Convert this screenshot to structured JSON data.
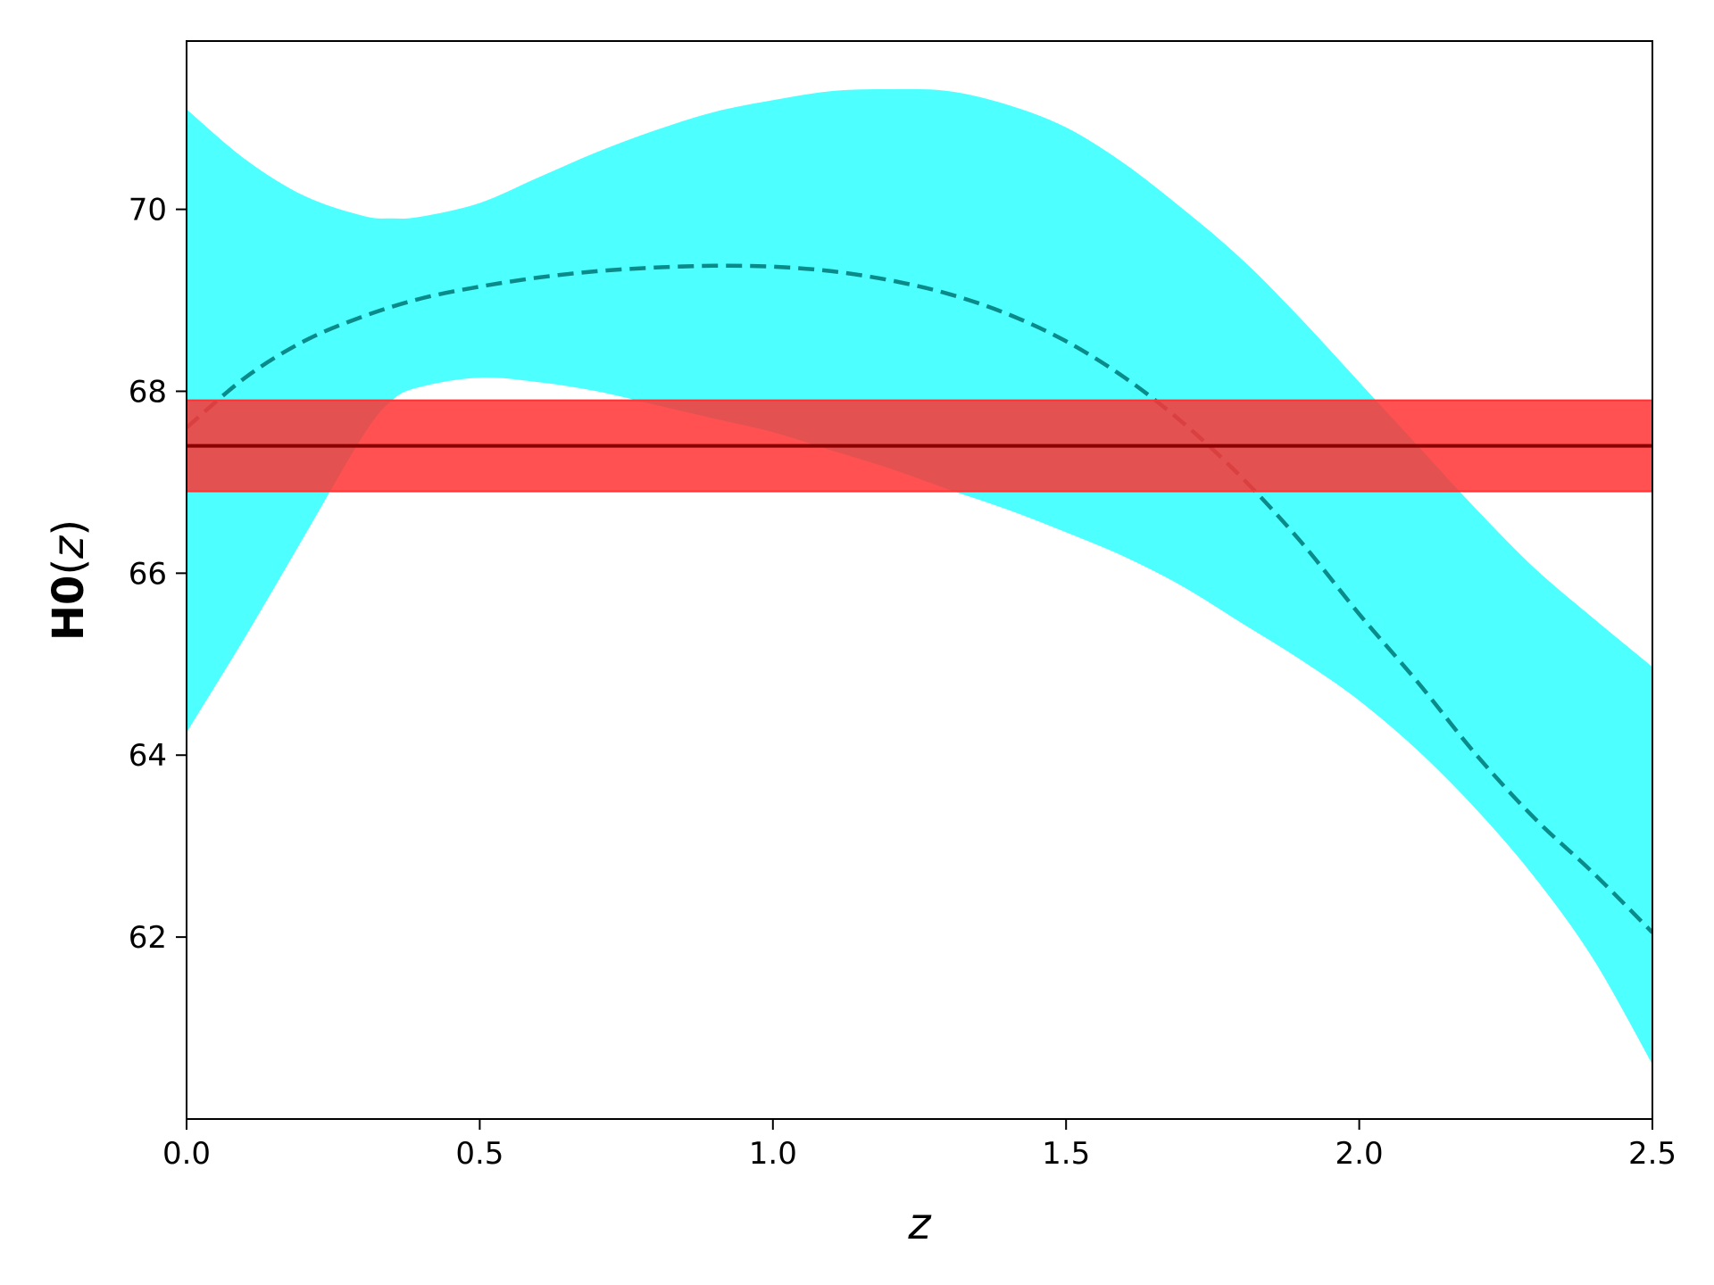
{
  "chart_data": {
    "type": "line",
    "xlabel": {
      "main": "",
      "var": "z",
      "suffix": ""
    },
    "ylabel": {
      "main": "H0",
      "open": "(",
      "var": "z",
      "close": ")"
    },
    "xlim": [
      0.0,
      2.5
    ],
    "ylim": [
      60.0,
      71.85
    ],
    "xticks": [
      0.0,
      0.5,
      1.0,
      1.5,
      2.0,
      2.5
    ],
    "xtick_labels": [
      "0.0",
      "0.5",
      "1.0",
      "1.5",
      "2.0",
      "2.5"
    ],
    "yticks": [
      62,
      64,
      66,
      68,
      70
    ],
    "ytick_labels": [
      "62",
      "64",
      "66",
      "68",
      "70"
    ],
    "grid": false,
    "series": [
      {
        "role": "reconstruction_band",
        "style": "filled band",
        "color": "#4dffff",
        "x": [
          0.0,
          0.1,
          0.2,
          0.3,
          0.35,
          0.4,
          0.5,
          0.6,
          0.7,
          0.8,
          0.9,
          1.0,
          1.1,
          1.2,
          1.3,
          1.4,
          1.5,
          1.6,
          1.7,
          1.8,
          1.9,
          2.0,
          2.1,
          2.2,
          2.3,
          2.4,
          2.5
        ],
        "upper": [
          71.1,
          70.55,
          70.15,
          69.93,
          69.9,
          69.92,
          70.07,
          70.35,
          70.63,
          70.87,
          71.07,
          71.2,
          71.3,
          71.32,
          71.3,
          71.15,
          70.9,
          70.5,
          70.0,
          69.45,
          68.8,
          68.1,
          67.4,
          66.7,
          66.05,
          65.5,
          64.97
        ],
        "lower": [
          64.25,
          65.3,
          66.4,
          67.5,
          67.9,
          68.05,
          68.15,
          68.1,
          68.0,
          67.85,
          67.7,
          67.55,
          67.35,
          67.15,
          66.92,
          66.7,
          66.45,
          66.18,
          65.85,
          65.45,
          65.05,
          64.6,
          64.05,
          63.4,
          62.65,
          61.75,
          60.6
        ]
      },
      {
        "role": "reconstruction_mean",
        "style": "dashed line",
        "color": "#0b8a8a",
        "x": [
          0.0,
          0.1,
          0.2,
          0.3,
          0.4,
          0.5,
          0.6,
          0.7,
          0.8,
          0.9,
          1.0,
          1.1,
          1.2,
          1.3,
          1.4,
          1.5,
          1.6,
          1.7,
          1.8,
          1.9,
          2.0,
          2.1,
          2.2,
          2.3,
          2.4,
          2.5
        ],
        "y": [
          67.6,
          68.15,
          68.55,
          68.82,
          69.02,
          69.15,
          69.25,
          69.32,
          69.36,
          69.38,
          69.37,
          69.32,
          69.22,
          69.07,
          68.85,
          68.55,
          68.15,
          67.65,
          67.05,
          66.35,
          65.55,
          64.8,
          64.0,
          63.3,
          62.7,
          62.05
        ]
      },
      {
        "role": "reference_band",
        "style": "filled band",
        "color": "#ff3333",
        "x": [
          0.0,
          2.5
        ],
        "upper": [
          67.9,
          67.9
        ],
        "lower": [
          66.9,
          66.9
        ]
      },
      {
        "role": "reference_value",
        "style": "solid line",
        "color": "#8b0000",
        "x": [
          0.0,
          2.5
        ],
        "y": [
          67.4,
          67.4
        ]
      }
    ]
  }
}
